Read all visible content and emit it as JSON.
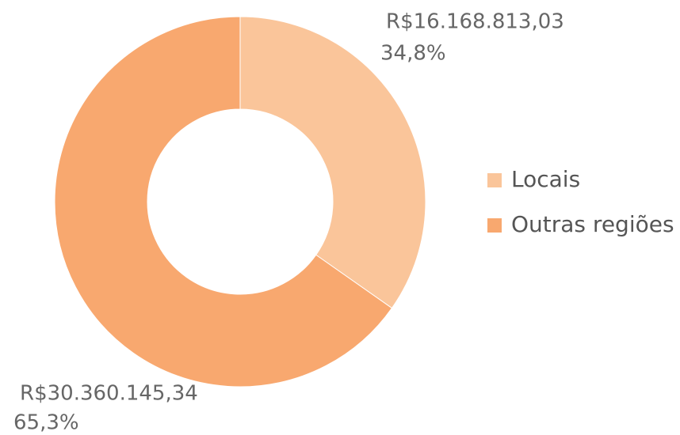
{
  "chart_data": {
    "type": "donut",
    "categories": [
      "Locais",
      "Outras regiões"
    ],
    "values": [
      16168813.03,
      30360145.34
    ],
    "value_labels": [
      "R$16.168.813,03",
      "R$30.360.145,34"
    ],
    "percents": [
      34.8,
      65.3
    ],
    "percent_labels": [
      "34,8%",
      "65,3%"
    ],
    "colors": [
      "#fac59a",
      "#f8a86f"
    ],
    "legend": "right"
  }
}
